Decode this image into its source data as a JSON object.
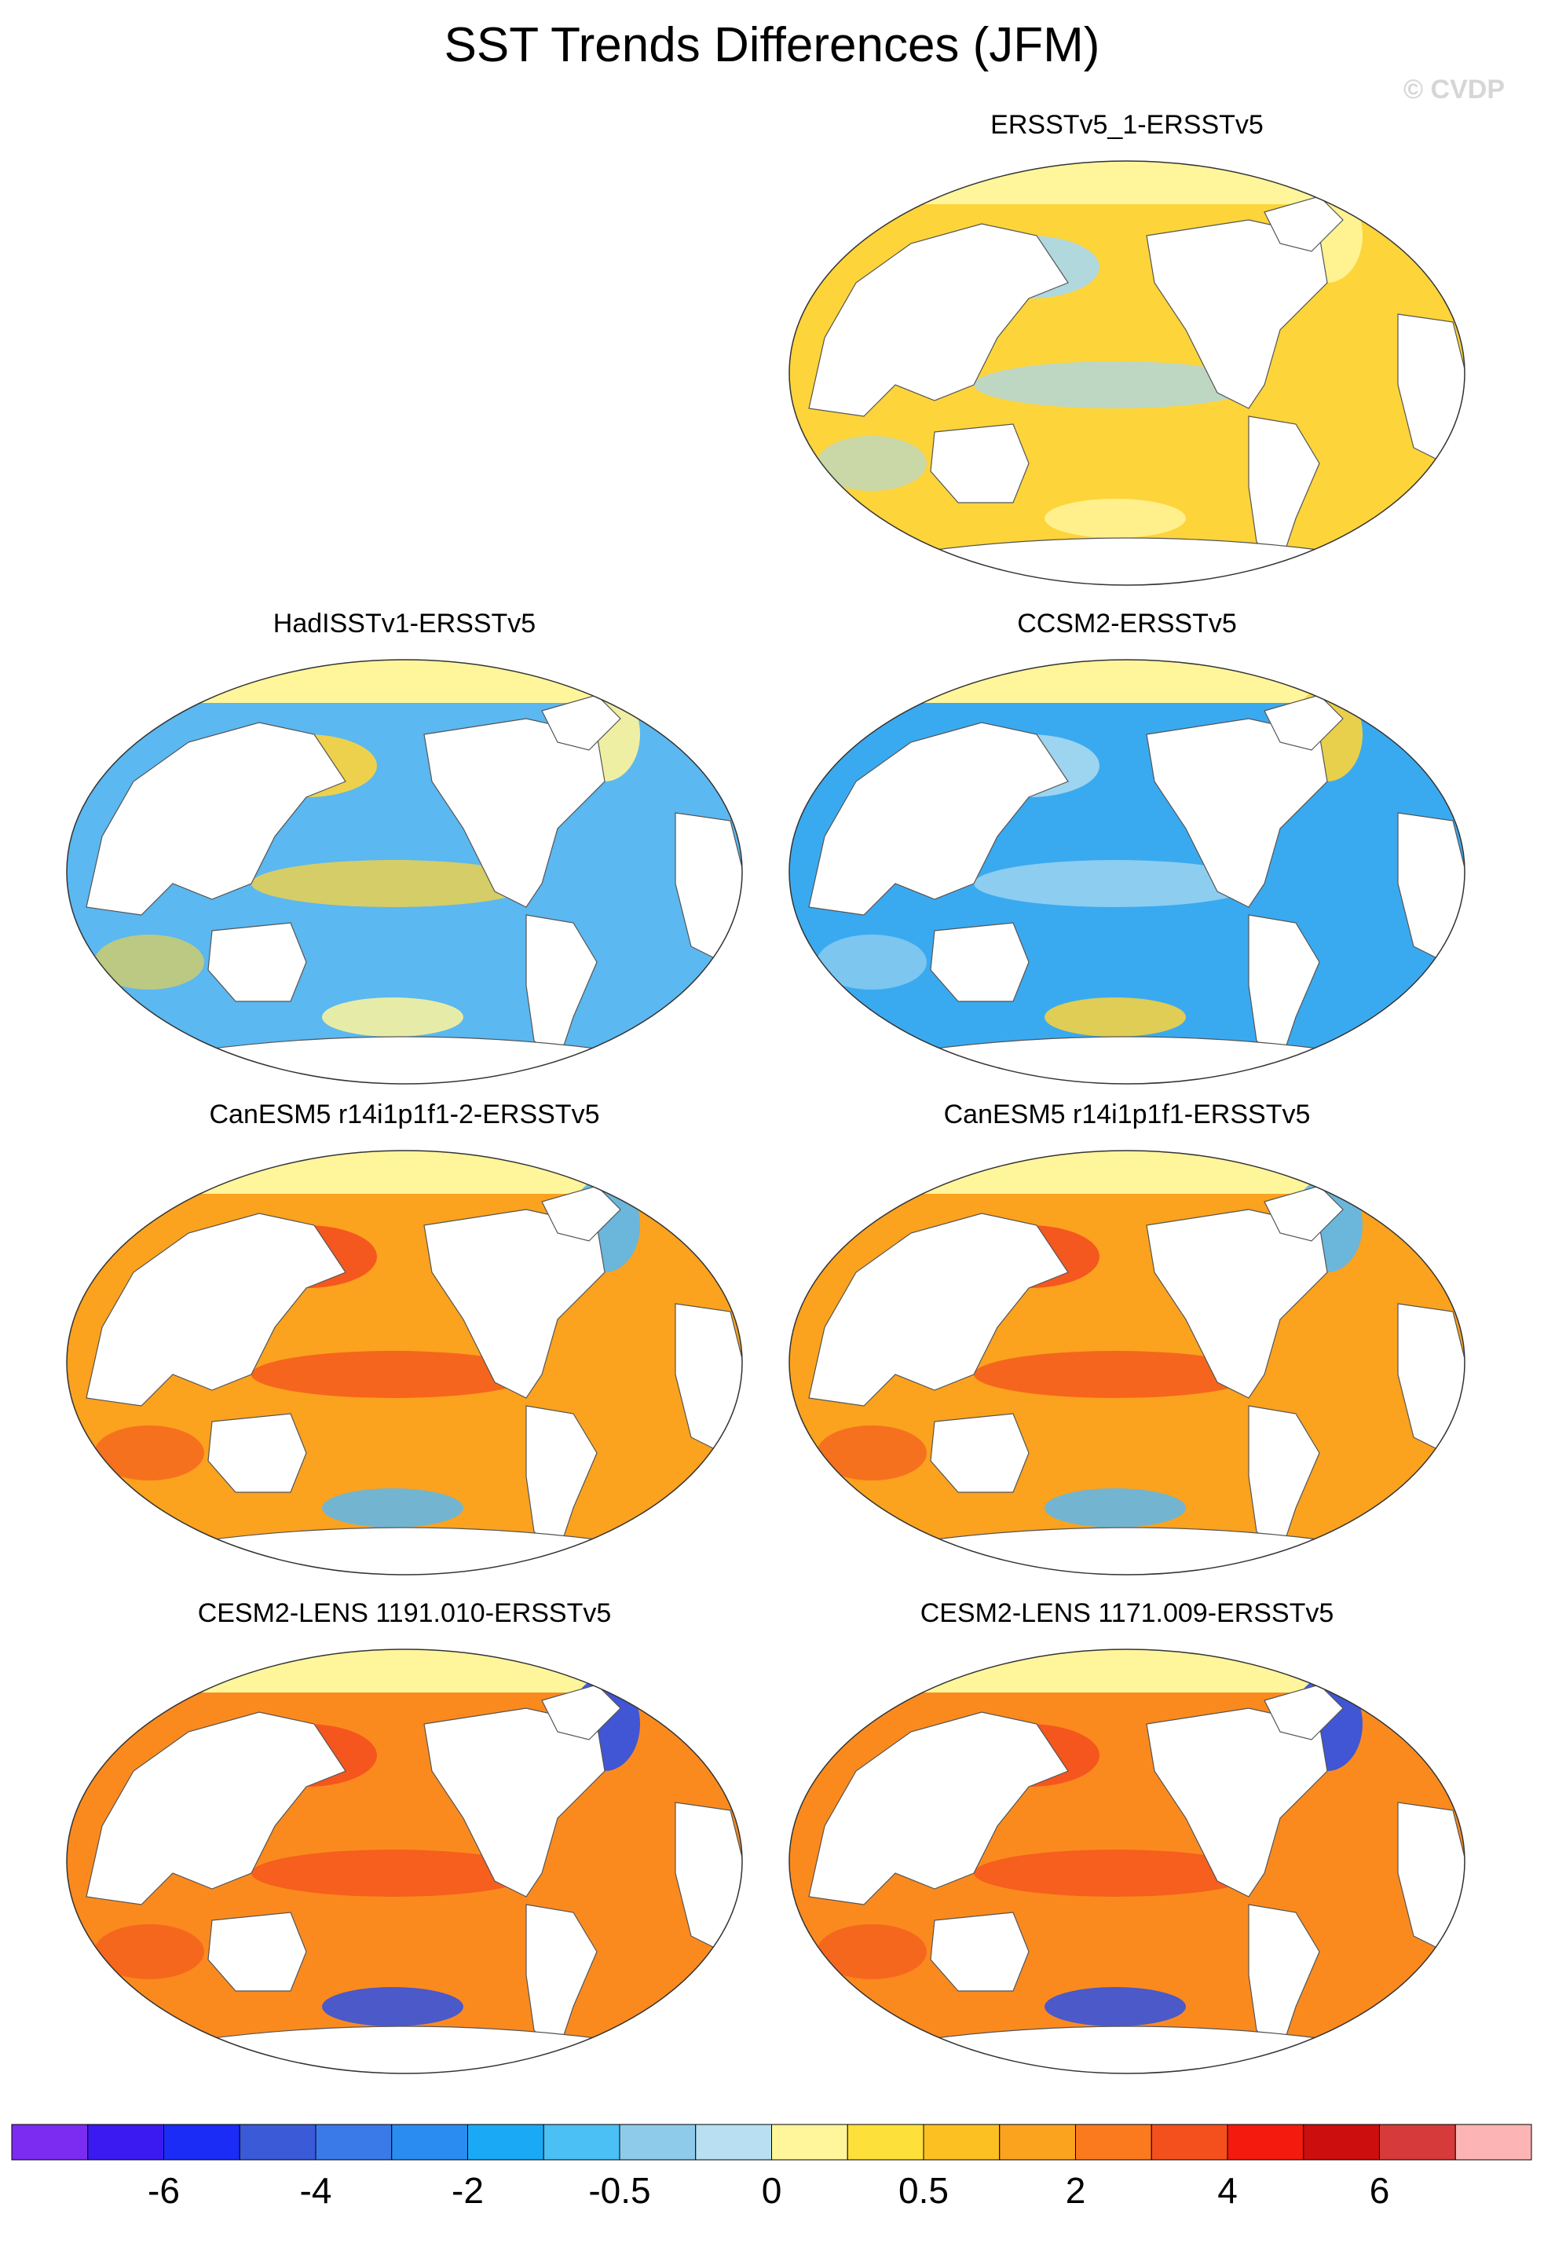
{
  "figure": {
    "title": "SST Trends Differences (JFM)",
    "watermark": "© CVDP"
  },
  "chart_data": [
    {
      "type": "heatmap",
      "title": "ERSSTv5_1-ERSSTv5",
      "ocean_color": "#fdd43a",
      "anomaly_color": "#a8d8f0",
      "anomaly2_color": "#fff59b"
    },
    {
      "type": "heatmap",
      "title": "HadISSTv1-ERSSTv5",
      "ocean_color": "#5bb8f0",
      "anomaly_color": "#fdd43a",
      "anomaly2_color": "#fff59b"
    },
    {
      "type": "heatmap",
      "title": "CCSM2-ERSSTv5",
      "ocean_color": "#3aaaf0",
      "anomaly_color": "#a8d8f0",
      "anomaly2_color": "#fdd43a"
    },
    {
      "type": "heatmap",
      "title": "CanESM5 r14i1p1f1-2-ERSSTv5",
      "ocean_color": "#fba21e",
      "anomaly_color": "#f4501e",
      "anomaly2_color": "#5bb8f0"
    },
    {
      "type": "heatmap",
      "title": "CanESM5 r14i1p1f1-ERSSTv5",
      "ocean_color": "#fba21e",
      "anomaly_color": "#f4501e",
      "anomaly2_color": "#5bb8f0"
    },
    {
      "type": "heatmap",
      "title": "CESM2-LENS 1191.010-ERSSTv5",
      "ocean_color": "#fb8a1e",
      "anomaly_color": "#f4501e",
      "anomaly2_color": "#2c50e8"
    },
    {
      "type": "heatmap",
      "title": "CESM2-LENS 1171.009-ERSSTv5",
      "ocean_color": "#fb8a1e",
      "anomaly_color": "#f4501e",
      "anomaly2_color": "#2c50e8"
    }
  ],
  "colorbar": {
    "colors": [
      "#7b2cf0",
      "#3a1af0",
      "#1a2cf5",
      "#3a5ad8",
      "#3a7ae8",
      "#2a8cf0",
      "#1aaaf5",
      "#4ac0f5",
      "#8ecbea",
      "#b8e0f2",
      "#fff59b",
      "#fde03a",
      "#fdc022",
      "#fba21e",
      "#fb7a1e",
      "#f4501e",
      "#f41a0e",
      "#cc0e0e",
      "#d63a3a",
      "#fdb4b4"
    ],
    "labels": [
      "-6",
      "-4",
      "-2",
      "-0.5",
      "0",
      "0.5",
      "2",
      "4",
      "6"
    ]
  }
}
